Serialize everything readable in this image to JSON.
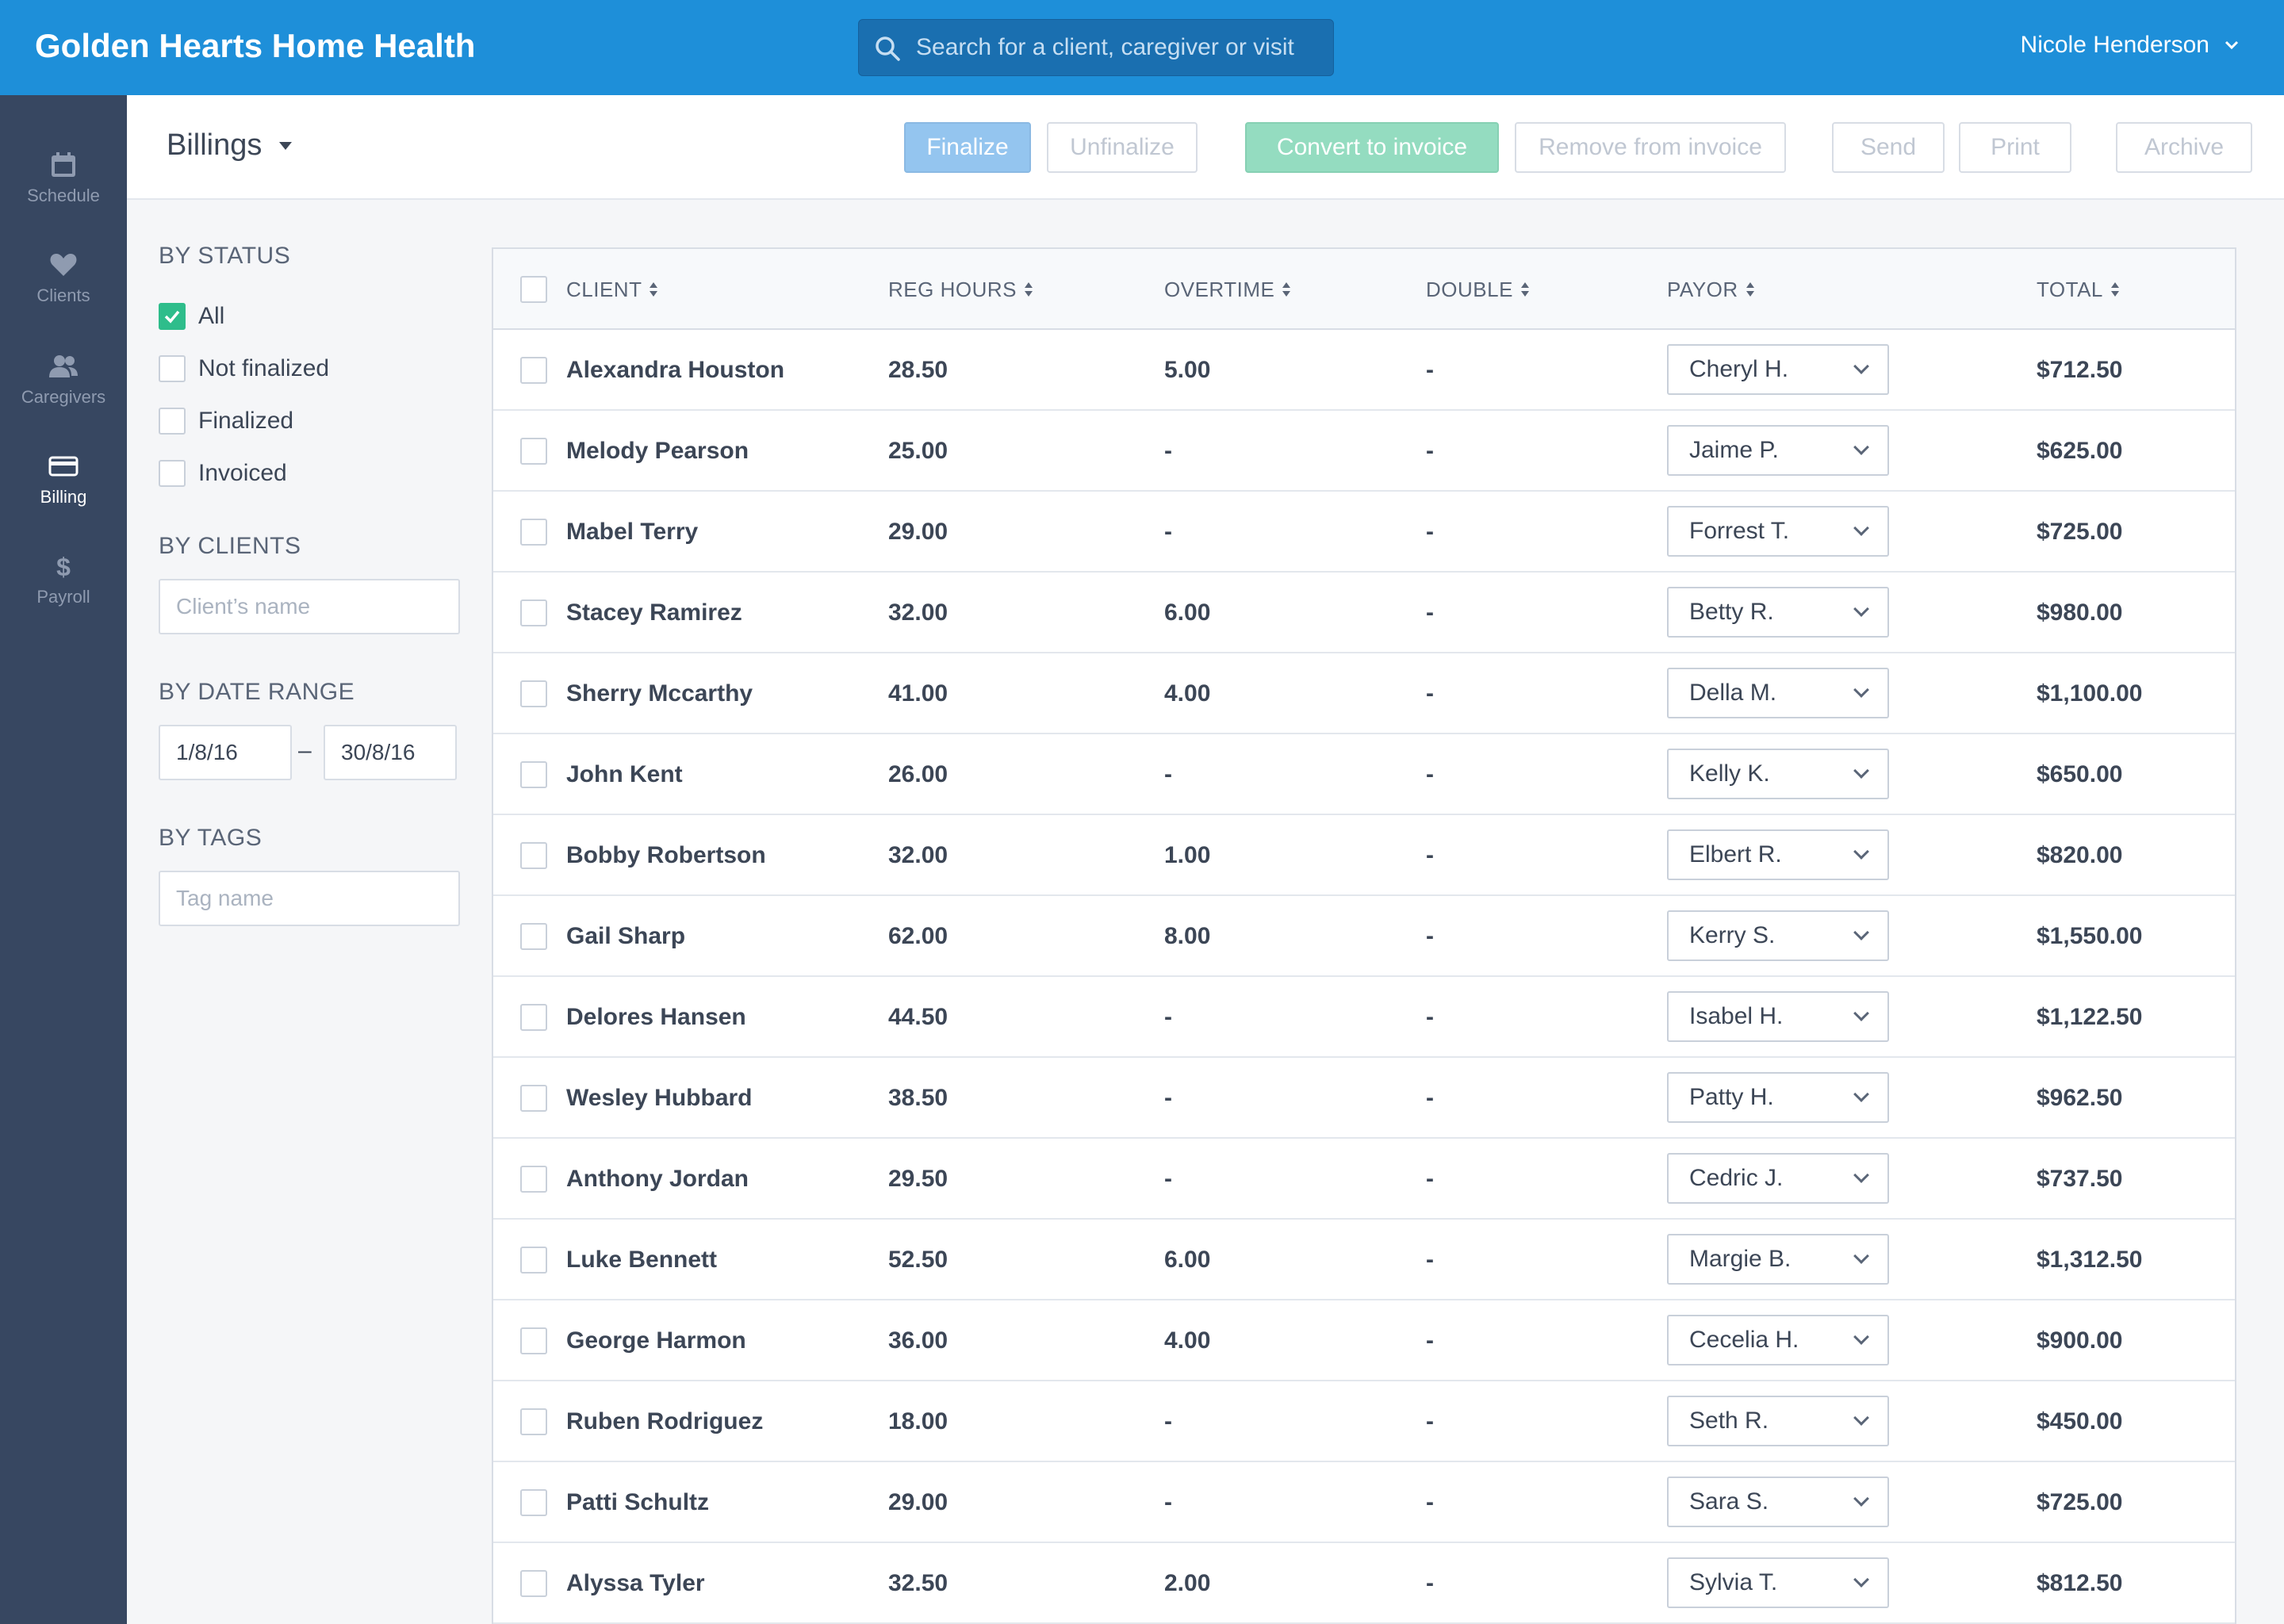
{
  "app": {
    "title": "Golden Hearts Home Health",
    "search_placeholder": "Search for a client, caregiver or visit",
    "user_name": "Nicole Henderson"
  },
  "nav": [
    {
      "label": "Schedule",
      "icon": "calendar-icon"
    },
    {
      "label": "Clients",
      "icon": "heart-icon"
    },
    {
      "label": "Caregivers",
      "icon": "users-icon"
    },
    {
      "label": "Billing",
      "icon": "credit-card-icon",
      "active": true
    },
    {
      "label": "Payroll",
      "icon": "dollar-icon"
    }
  ],
  "toolbar": {
    "page_title": "Billings",
    "finalize": "Finalize",
    "unfinalize": "Unfinalize",
    "convert": "Convert to invoice",
    "remove": "Remove from invoice",
    "send": "Send",
    "print": "Print",
    "archive": "Archive"
  },
  "filters": {
    "by_status": "BY STATUS",
    "status_options": [
      "All",
      "Not finalized",
      "Finalized",
      "Invoiced"
    ],
    "status_checked": "All",
    "by_clients": "BY CLIENTS",
    "client_placeholder": "Client’s name",
    "by_date_range": "BY DATE RANGE",
    "date_from": "1/8/16",
    "date_sep": "–",
    "date_to": "30/8/16",
    "by_tags": "BY TAGS",
    "tag_placeholder": "Tag name"
  },
  "table": {
    "headers": {
      "client": "CLIENT",
      "reg_hours": "REG HOURS",
      "overtime": "OVERTIME",
      "double": "DOUBLE",
      "payor": "PAYOR",
      "total": "TOTAL"
    },
    "rows": [
      {
        "client": "Alexandra Houston",
        "reg": "28.50",
        "ot": "5.00",
        "dbl": "-",
        "payor": "Cheryl H.",
        "total": "$712.50"
      },
      {
        "client": "Melody Pearson",
        "reg": "25.00",
        "ot": "-",
        "dbl": "-",
        "payor": "Jaime P.",
        "total": "$625.00"
      },
      {
        "client": "Mabel Terry",
        "reg": "29.00",
        "ot": "-",
        "dbl": "-",
        "payor": "Forrest T.",
        "total": "$725.00"
      },
      {
        "client": "Stacey Ramirez",
        "reg": "32.00",
        "ot": "6.00",
        "dbl": "-",
        "payor": "Betty R.",
        "total": "$980.00"
      },
      {
        "client": "Sherry Mccarthy",
        "reg": "41.00",
        "ot": "4.00",
        "dbl": "-",
        "payor": "Della M.",
        "total": "$1,100.00"
      },
      {
        "client": "John Kent",
        "reg": "26.00",
        "ot": "-",
        "dbl": "-",
        "payor": "Kelly K.",
        "total": "$650.00"
      },
      {
        "client": "Bobby Robertson",
        "reg": "32.00",
        "ot": "1.00",
        "dbl": "-",
        "payor": "Elbert R.",
        "total": "$820.00"
      },
      {
        "client": "Gail Sharp",
        "reg": "62.00",
        "ot": "8.00",
        "dbl": "-",
        "payor": "Kerry S.",
        "total": "$1,550.00"
      },
      {
        "client": "Delores Hansen",
        "reg": "44.50",
        "ot": "-",
        "dbl": "-",
        "payor": "Isabel H.",
        "total": "$1,122.50"
      },
      {
        "client": "Wesley Hubbard",
        "reg": "38.50",
        "ot": "-",
        "dbl": "-",
        "payor": "Patty H.",
        "total": "$962.50"
      },
      {
        "client": "Anthony Jordan",
        "reg": "29.50",
        "ot": "-",
        "dbl": "-",
        "payor": "Cedric J.",
        "total": "$737.50"
      },
      {
        "client": "Luke Bennett",
        "reg": "52.50",
        "ot": "6.00",
        "dbl": "-",
        "payor": "Margie B.",
        "total": "$1,312.50"
      },
      {
        "client": "George Harmon",
        "reg": "36.00",
        "ot": "4.00",
        "dbl": "-",
        "payor": "Cecelia H.",
        "total": "$900.00"
      },
      {
        "client": "Ruben Rodriguez",
        "reg": "18.00",
        "ot": "-",
        "dbl": "-",
        "payor": "Seth R.",
        "total": "$450.00"
      },
      {
        "client": "Patti Schultz",
        "reg": "29.00",
        "ot": "-",
        "dbl": "-",
        "payor": "Sara S.",
        "total": "$725.00"
      },
      {
        "client": "Alyssa Tyler",
        "reg": "32.50",
        "ot": "2.00",
        "dbl": "-",
        "payor": "Sylvia T.",
        "total": "$812.50"
      }
    ]
  },
  "colors": {
    "topbar": "#1e8fd9",
    "leftnav": "#374761",
    "finalize": "#94c5ef",
    "convert": "#94dcc0",
    "checked": "#2ebd8b"
  }
}
